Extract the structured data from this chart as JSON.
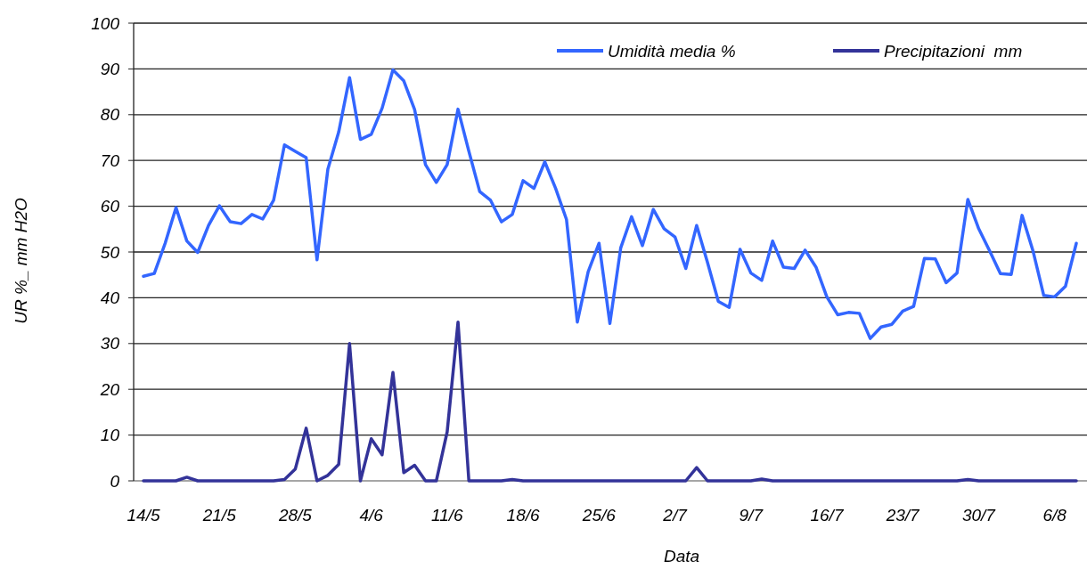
{
  "chart_data": {
    "type": "line",
    "xlabel": "Data",
    "ylabel": "UR %_ mm H2O",
    "categories": [
      "14/5",
      null,
      null,
      null,
      null,
      null,
      null,
      "21/5",
      null,
      null,
      null,
      null,
      null,
      null,
      "28/5",
      null,
      null,
      null,
      null,
      null,
      null,
      "4/6",
      null,
      null,
      null,
      null,
      null,
      null,
      "11/6",
      null,
      null,
      null,
      null,
      null,
      null,
      "18/6",
      null,
      null,
      null,
      null,
      null,
      null,
      "25/6",
      null,
      null,
      null,
      null,
      null,
      null,
      "2/7",
      null,
      null,
      null,
      null,
      null,
      null,
      "9/7",
      null,
      null,
      null,
      null,
      null,
      null,
      "16/7",
      null,
      null,
      null,
      null,
      null,
      null,
      "23/7",
      null,
      null,
      null,
      null,
      null,
      null,
      "30/7",
      null,
      null,
      null,
      null,
      null,
      null,
      "6/8",
      null,
      null
    ],
    "series": [
      {
        "name": "Umidità media %",
        "color": "#3366ff",
        "values": [
          44.7,
          45.3,
          51.9,
          59.7,
          52.4,
          49.9,
          55.8,
          60.1,
          56.6,
          56.2,
          58.2,
          57.2,
          61.3,
          73.4,
          72,
          70.6,
          48.3,
          68.1,
          76.2,
          88.1,
          74.6,
          75.7,
          81.4,
          89.8,
          87.4,
          81.1,
          69.1,
          65.2,
          69.1,
          81.2,
          72,
          63.2,
          61.3,
          56.6,
          58.2,
          65.6,
          63.9,
          69.7,
          63.9,
          57.1,
          34.7,
          45.7,
          51.9,
          34.4,
          50.9,
          57.7,
          51.4,
          59.3,
          55.1,
          53.3,
          46.4,
          55.8,
          47.7,
          39.2,
          37.9,
          50.6,
          45.4,
          43.8,
          52.4,
          46.7,
          46.4,
          50.4,
          46.7,
          40.2,
          36.3,
          36.8,
          36.6,
          31.1,
          33.6,
          34.2,
          37.1,
          38.1,
          48.6,
          48.5,
          43.3,
          45.4,
          61.5,
          55.1,
          50.3,
          45.3,
          45.1,
          58,
          50.3,
          40.5,
          40.2,
          42.5,
          51.9
        ]
      },
      {
        "name": "Precipitazioni  mm",
        "color": "#333399",
        "values": [
          0,
          0,
          0,
          0,
          0.8,
          0,
          0,
          0,
          0,
          0,
          0,
          0,
          0,
          0.3,
          2.6,
          11.5,
          0,
          1.2,
          3.6,
          30,
          0,
          9.2,
          5.7,
          23.7,
          1.8,
          3.4,
          0,
          0,
          10.7,
          34.7,
          0,
          0,
          0,
          0,
          0.3,
          0,
          0,
          0,
          0,
          0,
          0,
          0,
          0,
          0,
          0,
          0,
          0,
          0,
          0,
          0,
          0,
          2.9,
          0,
          0,
          0,
          0,
          0,
          0.4,
          0,
          0,
          0,
          0,
          0,
          0,
          0,
          0,
          0,
          0,
          0,
          0,
          0,
          0,
          0,
          0,
          0,
          0,
          0.3,
          0,
          0,
          0,
          0,
          0,
          0,
          0,
          0,
          0,
          0
        ]
      }
    ],
    "ylim": [
      0,
      100
    ],
    "yticks": [
      0,
      10,
      20,
      30,
      40,
      50,
      60,
      70,
      80,
      90,
      100
    ],
    "grid": "y",
    "legend": "top right",
    "marker": "none",
    "line_style": "solid"
  }
}
